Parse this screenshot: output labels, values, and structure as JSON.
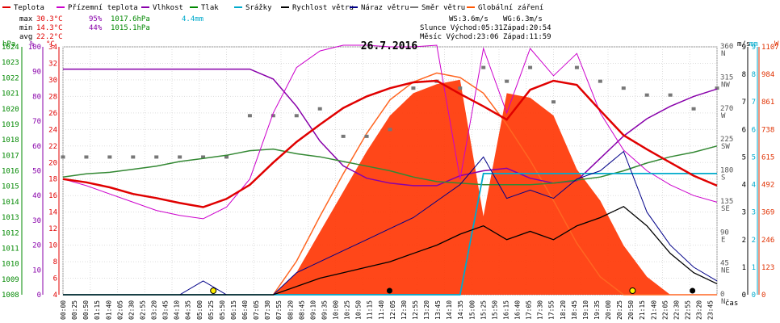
{
  "chart_data": {
    "type": "line",
    "title": "26.7.2016",
    "x_unit_label": "čas",
    "legend": [
      {
        "name": "Teplota",
        "color": "#e00000"
      },
      {
        "name": "Přízemní teplota",
        "color": "#cc00cc"
      },
      {
        "name": "Vlhkost",
        "color": "#8800aa"
      },
      {
        "name": "Tlak",
        "color": "#008800"
      },
      {
        "name": "Srážky",
        "color": "#00aacc"
      },
      {
        "name": "Rychlost větru",
        "color": "#000000"
      },
      {
        "name": "Náraz větru",
        "color": "#000088"
      },
      {
        "name": "Směr větru",
        "color": "#777777"
      },
      {
        "name": "Globální záření",
        "color": "#ff5500"
      }
    ],
    "stats": {
      "max": {
        "label": "max",
        "temp": "30.3°C",
        "hum": "95%",
        "press": "1017.6hPa",
        "rain": "4.4mm"
      },
      "min": {
        "label": "min",
        "temp": "14.3°C",
        "hum": "44%",
        "press": "1015.1hPa"
      },
      "avg": {
        "label": "avg",
        "temp": "22.2°C"
      }
    },
    "info": {
      "ws": "WS:3.6m/s",
      "wg": "WG:6.3m/s",
      "sun": "Slunce Východ:05:31",
      "sun_set": "Západ:20:54",
      "moon": "Měsíc Východ:23:06",
      "moon_set": "Západ:11:59"
    },
    "axes": {
      "hpa": {
        "unit": "hPa",
        "color": "#008800",
        "ticks": [
          "1024",
          "1023",
          "1022",
          "1021",
          "1020",
          "1019",
          "1018",
          "1017",
          "1016",
          "1015",
          "1014",
          "1013",
          "1012",
          "1011",
          "1010",
          "1009",
          "1008"
        ]
      },
      "pct": {
        "unit": "%",
        "color": "#8800aa",
        "ticks": [
          "100",
          "90",
          "80",
          "70",
          "60",
          "50",
          "40",
          "30",
          "20",
          "10",
          "0"
        ]
      },
      "degc": {
        "unit": "°C",
        "color": "#e00000",
        "ticks": [
          "34",
          "32",
          "30",
          "28",
          "26",
          "24",
          "22",
          "20",
          "18",
          "16",
          "14",
          "12",
          "10",
          "8",
          "6",
          "4"
        ]
      },
      "dir": {
        "ticks": [
          "360",
          "315",
          "270",
          "225",
          "180",
          "135",
          "90",
          "45",
          "0"
        ],
        "labels": [
          "N",
          "NW",
          "W",
          "SW",
          "S",
          "SE",
          "E",
          "NE",
          "N"
        ]
      },
      "ms": {
        "unit": "m/s",
        "ticks": [
          "9",
          "8",
          "7",
          "6",
          "5",
          "4",
          "3",
          "2",
          "1",
          "0"
        ]
      },
      "mm": {
        "unit": "mm",
        "ticks": [
          "9",
          "8",
          "7",
          "6",
          "5",
          "4",
          "3",
          "2",
          "1",
          "0"
        ]
      },
      "w": {
        "unit": "W",
        "ticks": [
          "1107",
          "984",
          "861",
          "738",
          "615",
          "492",
          "369",
          "246",
          "123",
          "0"
        ]
      }
    },
    "x_ticks": [
      "00:00",
      "00:25",
      "00:50",
      "01:15",
      "01:40",
      "02:05",
      "02:30",
      "02:55",
      "03:20",
      "03:45",
      "04:10",
      "04:35",
      "05:00",
      "05:25",
      "05:50",
      "06:15",
      "06:40",
      "07:05",
      "07:30",
      "07:55",
      "08:20",
      "08:45",
      "09:10",
      "09:35",
      "10:00",
      "10:25",
      "10:50",
      "11:15",
      "11:40",
      "12:05",
      "12:30",
      "12:55",
      "13:20",
      "13:45",
      "14:10",
      "14:35",
      "15:00",
      "15:25",
      "15:50",
      "16:15",
      "16:40",
      "17:05",
      "17:30",
      "17:55",
      "18:20",
      "18:45",
      "19:10",
      "19:35",
      "20:00",
      "20:25",
      "20:50",
      "21:15",
      "21:40",
      "22:05",
      "22:30",
      "22:55",
      "23:20",
      "23:45"
    ],
    "x_hours": [
      0,
      1,
      2,
      3,
      4,
      5,
      6,
      7,
      8,
      9,
      10,
      11,
      12,
      13,
      14,
      15,
      16,
      17,
      18,
      19,
      20,
      21,
      22,
      23,
      24
    ],
    "temperature_c": [
      18.0,
      17.6,
      17.0,
      16.2,
      15.7,
      15.1,
      14.6,
      15.6,
      17.3,
      20.0,
      22.5,
      24.6,
      26.6,
      28.0,
      29.0,
      29.7,
      29.9,
      28.3,
      26.8,
      25.2,
      28.8,
      29.9,
      29.4,
      26.3,
      23.3,
      21.6,
      20.0,
      18.4,
      17.2
    ],
    "ground_temp_c": [
      18.0,
      17.2,
      16.2,
      15.2,
      14.2,
      13.6,
      13.2,
      14.6,
      18.0,
      26.0,
      31.5,
      33.5,
      34.2,
      34.2,
      34.0,
      34.0,
      34.2,
      18.0,
      33.8,
      26.0,
      33.8,
      30.5,
      33.2,
      26.0,
      21.5,
      19.0,
      17.3,
      16.0,
      15.2
    ],
    "humidity_pct": [
      91,
      91,
      91,
      91,
      91,
      91,
      91,
      91,
      91,
      87,
      76,
      62,
      52,
      47,
      45,
      44,
      44,
      48,
      50,
      51,
      47,
      45,
      46,
      55,
      64,
      71,
      76,
      80,
      83
    ],
    "pressure_hpa": [
      1015.6,
      1015.8,
      1015.9,
      1016.1,
      1016.3,
      1016.6,
      1016.8,
      1017.0,
      1017.3,
      1017.4,
      1017.1,
      1016.9,
      1016.6,
      1016.3,
      1016.0,
      1015.6,
      1015.3,
      1015.2,
      1015.1,
      1015.1,
      1015.1,
      1015.2,
      1015.4,
      1015.6,
      1016.0,
      1016.5,
      1016.9,
      1017.2,
      1017.6
    ],
    "rain_mm": [
      0,
      0,
      0,
      0,
      0,
      0,
      0,
      0,
      0,
      0,
      0,
      0,
      0,
      0,
      0,
      0,
      0,
      0,
      4.4,
      4.4,
      4.4,
      4.4,
      4.4,
      4.4,
      4.4,
      4.4,
      4.4,
      4.4,
      4.4
    ],
    "wind_speed_ms": [
      0,
      0,
      0,
      0,
      0,
      0,
      0,
      0,
      0,
      0,
      0.3,
      0.6,
      0.8,
      1.0,
      1.2,
      1.5,
      1.8,
      2.2,
      2.5,
      2.0,
      2.3,
      2.0,
      2.5,
      2.8,
      3.2,
      2.5,
      1.5,
      0.8,
      0.4
    ],
    "wind_gust_ms": [
      0,
      0,
      0,
      0,
      0,
      0,
      0.5,
      0,
      0,
      0,
      0.8,
      1.2,
      1.6,
      2.0,
      2.4,
      2.8,
      3.4,
      4.0,
      5.0,
      3.5,
      3.8,
      3.5,
      4.2,
      4.5,
      5.2,
      3.0,
      1.8,
      1.0,
      0.5
    ],
    "solar_w": [
      0,
      0,
      0,
      0,
      0,
      0,
      0,
      0,
      0,
      0,
      100,
      280,
      460,
      640,
      800,
      900,
      940,
      960,
      350,
      900,
      880,
      800,
      560,
      420,
      220,
      80,
      0,
      0,
      0
    ],
    "clear_sky_w": [
      0,
      0,
      0,
      0,
      0,
      0,
      0,
      0,
      0,
      0,
      150,
      350,
      540,
      720,
      870,
      950,
      990,
      970,
      900,
      760,
      600,
      420,
      230,
      80,
      0,
      0,
      0,
      0,
      0
    ],
    "wind_dir_deg": [
      200,
      200,
      200,
      200,
      200,
      200,
      200,
      200,
      260,
      260,
      260,
      270,
      230,
      230,
      240,
      300,
      310,
      300,
      330,
      310,
      330,
      280,
      330,
      310,
      300,
      290,
      290,
      270,
      300
    ]
  }
}
